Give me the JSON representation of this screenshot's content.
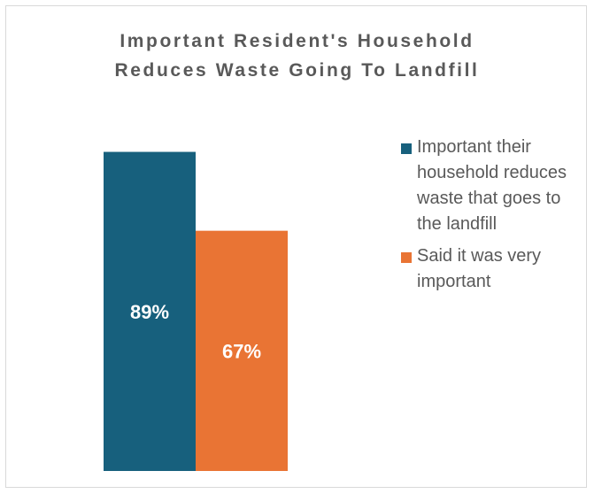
{
  "chart_data": {
    "type": "bar",
    "title_lines": [
      "Important Resident's Household",
      "Reduces Waste Going To Landfill"
    ],
    "categories": [
      ""
    ],
    "series": [
      {
        "name": "Important their household reduces waste that goes to the landfill",
        "values": [
          89
        ],
        "label": "89%",
        "color": "#17607d"
      },
      {
        "name": "Said it was very important",
        "values": [
          67
        ],
        "label": "67%",
        "color": "#e97434"
      }
    ],
    "ylim": [
      0,
      100
    ],
    "legend_position": "right",
    "grid": false
  }
}
